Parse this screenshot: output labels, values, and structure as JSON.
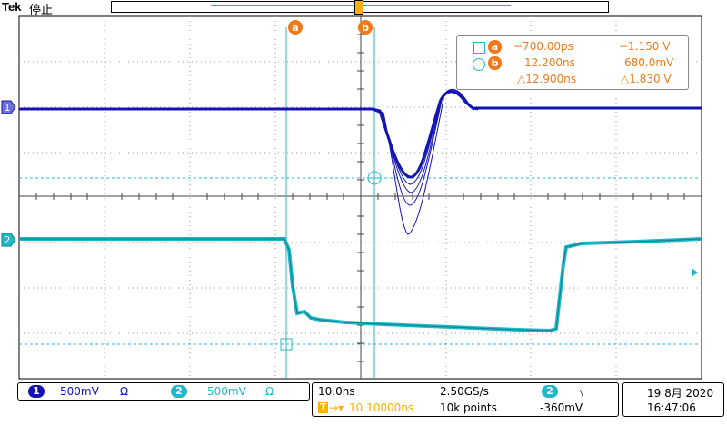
{
  "header": {
    "brand": "Tek",
    "acq_state": "停止"
  },
  "cursors": {
    "a_badge": "a",
    "b_badge": "b",
    "a_time": "−700.00ps",
    "a_volt": "−1.150 V",
    "b_time": "12.200ns",
    "b_volt": "680.0mV",
    "delta_time": "△12.900ns",
    "delta_volt": "△1.830 V"
  },
  "channels": {
    "ch1_label": "1",
    "ch2_label": "2",
    "ch1_scale": "500mV",
    "ch1_coupling": "Ω",
    "ch2_scale": "500mV",
    "ch2_coupling": "Ω"
  },
  "timebase": {
    "scale": "10.0ns",
    "sample_rate": "2.50GS/s",
    "trigger_position": "10.10000ns",
    "record_length": "10k points",
    "trigger_source": "2",
    "trigger_slope": "﹨",
    "trigger_level": "-360mV"
  },
  "datetime": {
    "date": "19 8月 2020",
    "time": "16:47:06"
  },
  "colors": {
    "ch1": "#1414b4",
    "ch2": "#21b9c8",
    "cursor": "#21b9c8",
    "accent": "#f07a1a"
  },
  "icons": {
    "trigger_marker": "trigger-t-icon",
    "cursor_a_shape": "square-icon",
    "cursor_b_shape": "circle-icon"
  }
}
